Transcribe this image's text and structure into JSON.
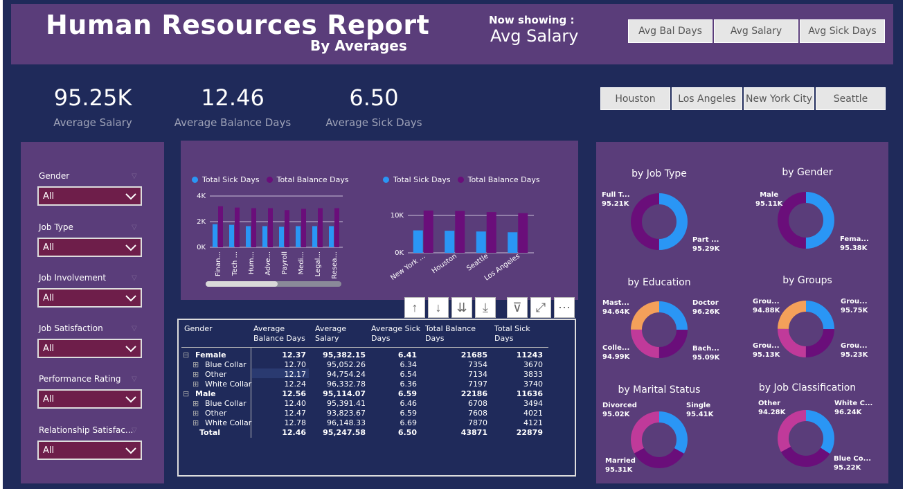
{
  "header": {
    "title": "Human Resources Report",
    "subtitle": "By Averages",
    "now_showing_label": "Now showing :",
    "now_showing_value": "Avg Salary",
    "measure_buttons": [
      "Avg Bal Days",
      "Avg Salary",
      "Avg Sick Days"
    ]
  },
  "city_buttons": [
    "Houston",
    "Los Angeles",
    "New York City",
    "Seattle"
  ],
  "kpis": [
    {
      "value": "95.25K",
      "label": "Average Salary"
    },
    {
      "value": "12.46",
      "label": "Average Balance Days"
    },
    {
      "value": "6.50",
      "label": "Average Sick Days"
    }
  ],
  "slicers": [
    {
      "title": "Gender",
      "value": "All"
    },
    {
      "title": "Job Type",
      "value": "All"
    },
    {
      "title": "Job Involvement",
      "value": "All"
    },
    {
      "title": "Job Satisfaction",
      "value": "All"
    },
    {
      "title": "Performance Rating",
      "value": "All"
    },
    {
      "title": "Relationship Satisfac...",
      "value": "All"
    }
  ],
  "colors": {
    "sick": "#2a96f5",
    "balance": "#6a0e7a",
    "orange": "#f4a05a",
    "pink": "#c03a9a"
  },
  "chart_data": [
    {
      "type": "bar",
      "legend": [
        "Total Sick Days",
        "Total Balance Days"
      ],
      "categories": [
        "Finan...",
        "Tech ...",
        "Hum...",
        "Adve...",
        "Payroll",
        "Medi...",
        "Legal...",
        "Resea..."
      ],
      "series": [
        {
          "name": "Total Sick Days",
          "values": [
            1800,
            1750,
            1650,
            1650,
            1600,
            1650,
            1650,
            1650
          ]
        },
        {
          "name": "Total Balance Days",
          "values": [
            3200,
            3100,
            3050,
            3050,
            2900,
            3000,
            3050,
            3050
          ]
        }
      ],
      "y_ticks": [
        "4K",
        "2K",
        "0K"
      ],
      "ylim": [
        0,
        4000
      ]
    },
    {
      "type": "bar",
      "legend": [
        "Total Sick Days",
        "Total Balance Days"
      ],
      "categories": [
        "New York ...",
        "Houston",
        "Seattle",
        "Los Angeles"
      ],
      "series": [
        {
          "name": "Total Sick Days",
          "values": [
            6000,
            5900,
            5700,
            5500
          ]
        },
        {
          "name": "Total Balance Days",
          "values": [
            11300,
            11200,
            10900,
            10600
          ]
        }
      ],
      "y_ticks": [
        "10K",
        "0K"
      ],
      "ylim": [
        0,
        10000
      ]
    },
    {
      "type": "pie",
      "title": "by Job Type",
      "labels": [
        "Full T...",
        "Part ..."
      ],
      "values": [
        "95.21K",
        "95.29K"
      ]
    },
    {
      "type": "pie",
      "title": "by Gender",
      "labels": [
        "Male",
        "Fema..."
      ],
      "values": [
        "95.11K",
        "95.38K"
      ]
    },
    {
      "type": "pie",
      "title": "by Education",
      "labels": [
        "Mast...",
        "Doctor",
        "Colle...",
        "Bach..."
      ],
      "values": [
        "94.64K",
        "96.26K",
        "94.99K",
        "95.09K"
      ]
    },
    {
      "type": "pie",
      "title": "by Groups",
      "labels": [
        "Grou...",
        "Grou...",
        "Grou...",
        "Grou..."
      ],
      "values": [
        "94.88K",
        "95.75K",
        "95.13K",
        "95.23K"
      ]
    },
    {
      "type": "pie",
      "title": "by Marital Status",
      "labels": [
        "Divorced",
        "Single",
        "Married"
      ],
      "values": [
        "95.02K",
        "95.41K",
        "95.31K"
      ]
    },
    {
      "type": "pie",
      "title": "by Job Classification",
      "labels": [
        "Other",
        "White C...",
        "Blue Co..."
      ],
      "values": [
        "94.28K",
        "96.24K",
        "95.22K"
      ]
    }
  ],
  "table": {
    "headers": [
      "Gender",
      "Average Balance Days",
      "Average Salary",
      "Average Sick Days",
      "Total Balance Days",
      "Total Sick Days"
    ],
    "rows": [
      {
        "label": "Female",
        "level": 0,
        "icon": "⊟",
        "bal": "12.37",
        "sal": "95,382.15",
        "sick": "6.41",
        "tbal": "21685",
        "tsick": "11243"
      },
      {
        "label": "Blue Collar",
        "level": 1,
        "icon": "⊞",
        "bal": "12.70",
        "sal": "95,052.26",
        "sick": "6.34",
        "tbal": "7354",
        "tsick": "3670"
      },
      {
        "label": "Other",
        "level": 1,
        "icon": "⊞",
        "bal": "12.17",
        "sal": "94,754.24",
        "sick": "6.54",
        "tbal": "7134",
        "tsick": "3833"
      },
      {
        "label": "White Collar",
        "level": 1,
        "icon": "⊞",
        "bal": "12.24",
        "sal": "96,332.78",
        "sick": "6.36",
        "tbal": "7197",
        "tsick": "3740"
      },
      {
        "label": "Male",
        "level": 0,
        "icon": "⊟",
        "bal": "12.56",
        "sal": "95,114.07",
        "sick": "6.59",
        "tbal": "22186",
        "tsick": "11636"
      },
      {
        "label": "Blue Collar",
        "level": 1,
        "icon": "⊞",
        "bal": "12.40",
        "sal": "95,391.41",
        "sick": "6.46",
        "tbal": "6708",
        "tsick": "3494"
      },
      {
        "label": "Other",
        "level": 1,
        "icon": "⊞",
        "bal": "12.47",
        "sal": "93,823.67",
        "sick": "6.59",
        "tbal": "7608",
        "tsick": "4021"
      },
      {
        "label": "White Collar",
        "level": 1,
        "icon": "⊞",
        "bal": "12.78",
        "sal": "96,148.33",
        "sick": "6.69",
        "tbal": "7870",
        "tsick": "4121"
      },
      {
        "label": "Total",
        "level": 2,
        "icon": "",
        "bal": "12.46",
        "sal": "95,247.58",
        "sick": "6.50",
        "tbal": "43871",
        "tsick": "22879"
      }
    ]
  }
}
